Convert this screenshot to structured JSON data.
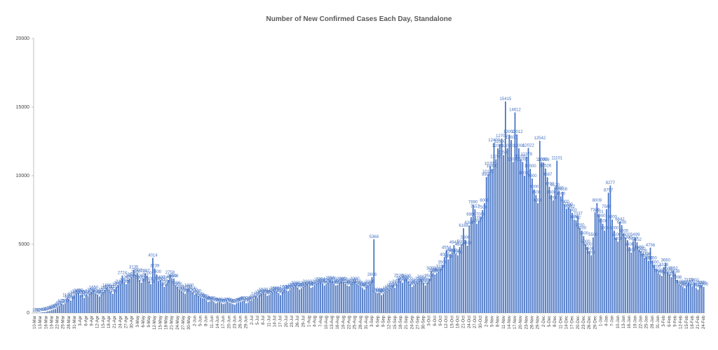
{
  "chart_data": {
    "type": "bar",
    "title": "Number of New Confirmed Cases Each Day, Standalone",
    "color": "#4472c4",
    "ylim": [
      0,
      20000
    ],
    "yticks": [
      0,
      5000,
      10000,
      15000,
      20000
    ],
    "grid": false,
    "categories": [
      "10-Mar",
      null,
      null,
      "13-Mar",
      null,
      null,
      "16-Mar",
      null,
      null,
      "19-Mar",
      null,
      null,
      "22-Mar",
      null,
      null,
      "25-Mar",
      null,
      null,
      "28-Mar",
      null,
      null,
      "31-Mar",
      null,
      null,
      "3-Apr",
      null,
      null,
      "6-Apr",
      null,
      null,
      "9-Apr",
      null,
      null,
      "12-Apr",
      null,
      null,
      "15-Apr",
      null,
      null,
      "18-Apr",
      null,
      null,
      "21-Apr",
      null,
      null,
      "24-Apr",
      null,
      null,
      "27-Apr",
      null,
      null,
      "30-Apr",
      null,
      null,
      "3-May",
      null,
      null,
      "6-May",
      null,
      null,
      "9-May",
      null,
      null,
      "12-May",
      null,
      null,
      "15-May",
      null,
      null,
      "18-May",
      null,
      null,
      "21-May",
      null,
      null,
      "24-May",
      null,
      null,
      "27-May",
      null,
      null,
      "30-May",
      null,
      null,
      "2-Jun",
      null,
      null,
      "5-Jun",
      null,
      null,
      "8-Jun",
      null,
      null,
      "11-Jun",
      null,
      null,
      "14-Jun",
      null,
      null,
      "17-Jun",
      null,
      null,
      "20-Jun",
      null,
      null,
      "23-Jun",
      null,
      null,
      "26-Jun",
      null,
      null,
      "29-Jun",
      null,
      null,
      "2-Jul",
      null,
      null,
      "5-Jul",
      null,
      null,
      "8-Jul",
      null,
      null,
      "11-Jul",
      null,
      null,
      "14-Jul",
      null,
      null,
      "17-Jul",
      null,
      null,
      "20-Jul",
      null,
      null,
      "23-Jul",
      null,
      null,
      "26-Jul",
      null,
      null,
      "29-Jul",
      null,
      null,
      "1-Aug",
      null,
      null,
      "4-Aug",
      null,
      null,
      "7-Aug",
      null,
      null,
      "10-Aug",
      null,
      null,
      "13-Aug",
      null,
      null,
      "16-Aug",
      null,
      null,
      "19-Aug",
      null,
      null,
      "22-Aug",
      null,
      null,
      "25-Aug",
      null,
      null,
      "28-Aug",
      null,
      null,
      "31-Aug",
      null,
      null,
      "3-Sep",
      null,
      null,
      "6-Sep",
      null,
      null,
      "9-Sep",
      null,
      null,
      "12-Sep",
      null,
      null,
      "15-Sep",
      null,
      null,
      "18-Sep",
      null,
      null,
      "21-Sep",
      null,
      null,
      "24-Sep",
      null,
      null,
      "27-Sep",
      null,
      null,
      "30-Sep",
      null,
      null,
      "3-Oct",
      null,
      null,
      "6-Oct",
      null,
      null,
      "9-Oct",
      null,
      null,
      "12-Oct",
      null,
      null,
      "15-Oct",
      null,
      null,
      "18-Oct",
      null,
      null,
      "21-Oct",
      null,
      null,
      "24-Oct",
      null,
      null,
      "27-Oct",
      null,
      null,
      "30-Oct",
      null,
      null,
      "2-Nov",
      null,
      null,
      "5-Nov",
      null,
      null,
      "8-Nov",
      null,
      null,
      "11-Nov",
      null,
      null,
      "14-Nov",
      null,
      null,
      "17-Nov",
      null,
      null,
      "20-Nov",
      null,
      null,
      "23-Nov",
      null,
      null,
      "26-Nov",
      null,
      null,
      "29-Nov",
      null,
      null,
      "2-Dec",
      null,
      null,
      "5-Dec",
      null,
      null,
      "8-Dec",
      null,
      null,
      "11-Dec",
      null,
      null,
      "14-Dec",
      null,
      null,
      "17-Dec",
      null,
      null,
      "20-Dec",
      null,
      null,
      "23-Dec",
      null,
      null,
      "26-Dec",
      null,
      null,
      "29-Dec",
      null,
      null,
      "1-Jan",
      null,
      null,
      "4-Jan",
      null,
      null,
      "7-Jan",
      null,
      null,
      "10-Jan",
      null,
      null,
      "13-Jan",
      null,
      null,
      "16-Jan",
      null,
      null,
      "19-Jan",
      null,
      null,
      "22-Jan",
      null,
      null,
      "25-Jan",
      null,
      null,
      "28-Jan",
      null,
      null,
      "31-Jan",
      null,
      null,
      "3-Feb",
      null,
      null,
      "6-Feb",
      null,
      null,
      "9-Feb",
      null,
      null,
      "12-Feb",
      null,
      null,
      "15-Feb",
      null,
      null,
      "18-Feb",
      null,
      null,
      "21-Feb",
      null,
      null,
      "24-Feb"
    ],
    "values": [
      10,
      29,
      12,
      20,
      45,
      60,
      80,
      120,
      150,
      200,
      250,
      300,
      400,
      500,
      672,
      620,
      700,
      1100,
      1000,
      900,
      1200,
      1300,
      1400,
      1450,
      1300,
      1350,
      1100,
      1300,
      1200,
      1400,
      1500,
      1650,
      1400,
      1300,
      1200,
      1350,
      1500,
      1650,
      1800,
      1700,
      1550,
      1400,
      1700,
      1900,
      2000,
      2100,
      2724,
      2200,
      2100,
      2400,
      2500,
      2600,
      3135,
      2800,
      2900,
      2400,
      2200,
      2500,
      2887,
      2700,
      2300,
      2100,
      4014,
      3239,
      2800,
      2300,
      2400,
      2200,
      1900,
      2100,
      2400,
      2758,
      2500,
      2508,
      2000,
      1900,
      1700,
      1600,
      1500,
      1400,
      1700,
      1800,
      1614,
      1500,
      1300,
      1400,
      1200,
      1100,
      1056,
      1000,
      900,
      800,
      850,
      900,
      800,
      700,
      750,
      800,
      700,
      650,
      700,
      800,
      750,
      700,
      650,
      600,
      700,
      750,
      800,
      850,
      900,
      700,
      750,
      850,
      900,
      1000,
      1200,
      1100,
      1300,
      1400,
      1500,
      1350,
      1250,
      1300,
      1400,
      1500,
      1600,
      1550,
      1400,
      1300,
      1500,
      1700,
      1650,
      1600,
      1700,
      1800,
      1900,
      2000,
      1850,
      1700,
      1800,
      1900,
      2000,
      2100,
      1950,
      1841,
      1900,
      2000,
      2100,
      2200,
      2264,
      2150,
      2000,
      2100,
      2200,
      2356,
      2300,
      2100,
      2000,
      2050,
      2200,
      2300,
      2250,
      2100,
      2000,
      1950,
      2100,
      2200,
      2300,
      2100,
      2000,
      1900,
      1800,
      1700,
      1900,
      2000,
      2100,
      2606,
      5368,
      1500,
      1400,
      1450,
      1300,
      1400,
      1500,
      1600,
      1700,
      1800,
      2000,
      1841,
      2100,
      2529,
      2300,
      2200,
      2400,
      2500,
      2300,
      2100,
      1900,
      2000,
      2100,
      2206,
      2300,
      2442,
      2200,
      2000,
      2200,
      2500,
      3050,
      2900,
      2800,
      2900,
      3000,
      3200,
      3500,
      4058,
      4554,
      3900,
      4300,
      4400,
      4942,
      4300,
      4200,
      4800,
      5000,
      6168,
      5300,
      4900,
      6386,
      6980,
      7890,
      7557,
      6500,
      6700,
      7000,
      7500,
      8000,
      9900,
      10100,
      10700,
      10500,
      12400,
      11200,
      12000,
      12300,
      12700,
      11500,
      15415,
      12000,
      13000,
      12600,
      11000,
      14612,
      13012,
      12000,
      11200,
      11000,
      10000,
      11378,
      12022,
      10500,
      9800,
      9000,
      8600,
      8000,
      12542,
      11000,
      10959,
      10526,
      9887,
      9200,
      8600,
      8200,
      9120,
      11101,
      8900,
      8500,
      8828,
      7900,
      7600,
      7700,
      7562,
      7300,
      6800,
      6762,
      7037,
      6200,
      6000,
      5600,
      5000,
      4800,
      4500,
      4200,
      5500,
      7326,
      8009,
      7201,
      6900,
      6500,
      6000,
      7560,
      8757,
      9277,
      6800,
      6000,
      5500,
      5200,
      6642,
      6400,
      5800,
      5500,
      5300,
      4800,
      4400,
      5227,
      5499,
      5152,
      4600,
      4500,
      4300,
      4000,
      4100,
      3800,
      4756,
      3800,
      3500,
      3200,
      2900,
      2800,
      2700,
      3328,
      3660,
      3000,
      2800,
      2600,
      3062,
      2838,
      2398,
      2100,
      2000,
      1900,
      1800,
      2000,
      2219,
      2100,
      1900,
      2200,
      1800,
      1700,
      2022,
      2000,
      1900
    ]
  }
}
